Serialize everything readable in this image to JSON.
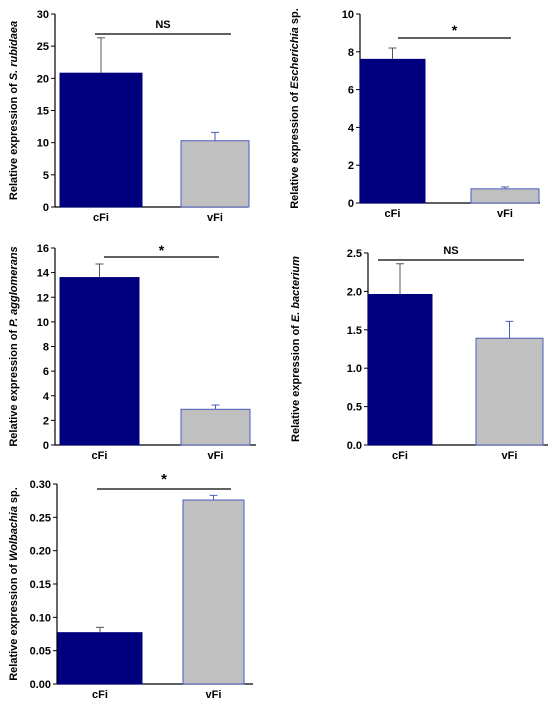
{
  "colors": {
    "cFi": "#00007f",
    "vFi": "#c0c0c0",
    "vFi_edge": "#4a5dbd",
    "axis": "#000000"
  },
  "chart_data": [
    {
      "type": "bar",
      "categories": [
        "cFi",
        "vFi"
      ],
      "values": [
        20.8,
        10.3
      ],
      "errors": [
        5.5,
        1.3
      ],
      "ylabel_pre": "Relative expression of ",
      "ylabel_italic": "S. rubidaea",
      "ylabel_post": "",
      "ylim": [
        0,
        30
      ],
      "yticks": [
        "0",
        "5",
        "10",
        "15",
        "20",
        "25",
        "30"
      ],
      "significance": "NS"
    },
    {
      "type": "bar",
      "categories": [
        "cFi",
        "vFi"
      ],
      "values": [
        7.6,
        0.75
      ],
      "errors": [
        0.6,
        0.1
      ],
      "ylabel_pre": "Relative expression of ",
      "ylabel_italic": "Escherichia",
      "ylabel_post": " sp.",
      "ylim": [
        0,
        10
      ],
      "yticks": [
        "0",
        "2",
        "4",
        "6",
        "8",
        "10"
      ],
      "significance": "*"
    },
    {
      "type": "bar",
      "categories": [
        "cFi",
        "vFi"
      ],
      "values": [
        13.6,
        2.9
      ],
      "errors": [
        1.1,
        0.35
      ],
      "ylabel_pre": "Relative expression of ",
      "ylabel_italic": "P. agglomerans",
      "ylabel_post": "",
      "ylim": [
        0,
        16
      ],
      "yticks": [
        "0",
        "2",
        "4",
        "6",
        "8",
        "10",
        "12",
        "14",
        "16"
      ],
      "significance": "*"
    },
    {
      "type": "bar",
      "categories": [
        "cFi",
        "vFi"
      ],
      "values": [
        1.96,
        1.39
      ],
      "errors": [
        0.4,
        0.22
      ],
      "ylabel_pre": "Relative expression of ",
      "ylabel_italic": "E. bacterium",
      "ylabel_post": "",
      "ylim": [
        0,
        2.5
      ],
      "yticks": [
        "0.0",
        "0.5",
        "1.0",
        "1.5",
        "2.0",
        "2.5"
      ],
      "significance": "NS"
    },
    {
      "type": "bar",
      "categories": [
        "cFi",
        "vFi"
      ],
      "values": [
        0.077,
        0.276
      ],
      "errors": [
        0.008,
        0.007
      ],
      "ylabel_pre": "Relative expression of ",
      "ylabel_italic": "Wolbachia",
      "ylabel_post": " sp.",
      "ylim": [
        0,
        0.3
      ],
      "yticks": [
        "0.00",
        "0.05",
        "0.10",
        "0.15",
        "0.20",
        "0.25",
        "0.30"
      ],
      "significance": "*"
    }
  ]
}
